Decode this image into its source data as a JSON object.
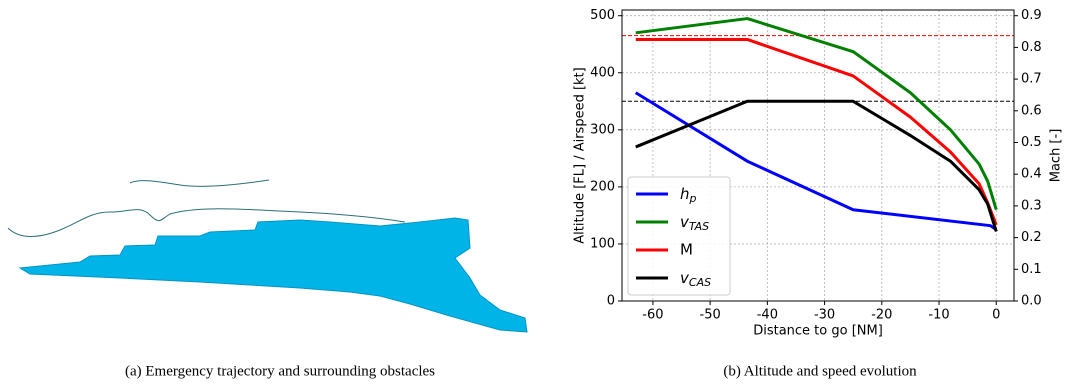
{
  "captions": [
    "(a) Emergency trajectory and surrounding obstacles",
    "(b) Altitude and speed evolution"
  ],
  "chart_data": {
    "type": "line",
    "xlabel": "Distance to go [NM]",
    "ylabel": "Altitude [FL] / Airspeed [kt]",
    "y2label": "Mach [-]",
    "xlim": [
      -65.4,
      3.1
    ],
    "ylim": [
      0,
      510
    ],
    "y2lim": [
      0,
      0.918
    ],
    "xticks": [
      -60,
      -50,
      -40,
      -30,
      -20,
      -10,
      0
    ],
    "yticks": [
      0,
      100,
      200,
      300,
      400,
      500
    ],
    "y2ticks": [
      0.0,
      0.1,
      0.2,
      0.3,
      0.4,
      0.5,
      0.6,
      0.7,
      0.8,
      0.9
    ],
    "grid": true,
    "legend": "lower left",
    "hlines": [
      {
        "value": 465,
        "color": "#ff0000"
      },
      {
        "value": 350,
        "color": "#000000"
      }
    ],
    "series": [
      {
        "name": "hp",
        "color": "#0000ff",
        "x": [
          -63,
          -43.5,
          -25,
          -1,
          0
        ],
        "values": [
          365,
          245,
          160,
          132,
          125
        ]
      },
      {
        "name": "vTAS",
        "color": "#008000",
        "x": [
          -63,
          -43.5,
          -25,
          -15,
          -8,
          -3,
          -1.5,
          0
        ],
        "values": [
          470,
          495,
          437,
          365,
          300,
          240,
          210,
          160
        ]
      },
      {
        "name": "M",
        "color": "#ff0000",
        "axis": "y2",
        "x": [
          -63,
          -43.5,
          -25,
          -15,
          -8,
          -3,
          -1.5,
          0
        ],
        "values": [
          0.825,
          0.825,
          0.71,
          0.58,
          0.47,
          0.37,
          0.31,
          0.24
        ]
      },
      {
        "name": "vCAS",
        "color": "#000000",
        "x": [
          -63,
          -43.5,
          -25,
          -15,
          -8,
          -3,
          -1.5,
          0
        ],
        "values": [
          270,
          350,
          350,
          290,
          245,
          195,
          170,
          122
        ]
      }
    ]
  }
}
